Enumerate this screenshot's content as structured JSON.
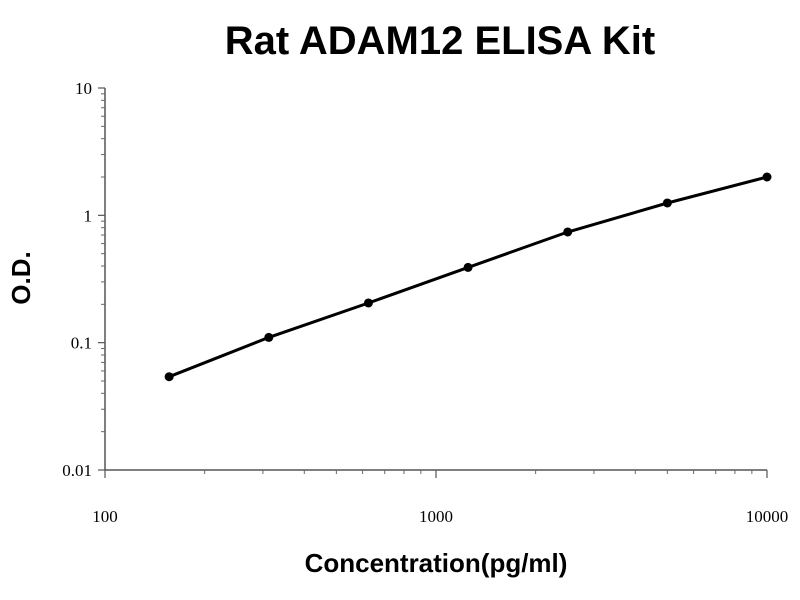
{
  "chart_data": {
    "type": "scatter",
    "title": "Rat ADAM12 ELISA Kit",
    "xlabel": "Concentration(pg/ml)",
    "ylabel": "O.D.",
    "x_scale": "log",
    "y_scale": "log",
    "xlim": [
      100,
      10000
    ],
    "ylim": [
      0.01,
      10
    ],
    "x_ticks": [
      "100",
      "1000",
      "10000"
    ],
    "y_ticks": [
      "0.01",
      "0.1",
      "1",
      "10"
    ],
    "grid": false,
    "series": [
      {
        "x": [
          156.25,
          312.5,
          625,
          1250,
          2500,
          5000,
          10000
        ],
        "y": [
          0.054,
          0.11,
          0.205,
          0.39,
          0.74,
          1.25,
          2.0
        ],
        "color": "#000000"
      }
    ]
  }
}
